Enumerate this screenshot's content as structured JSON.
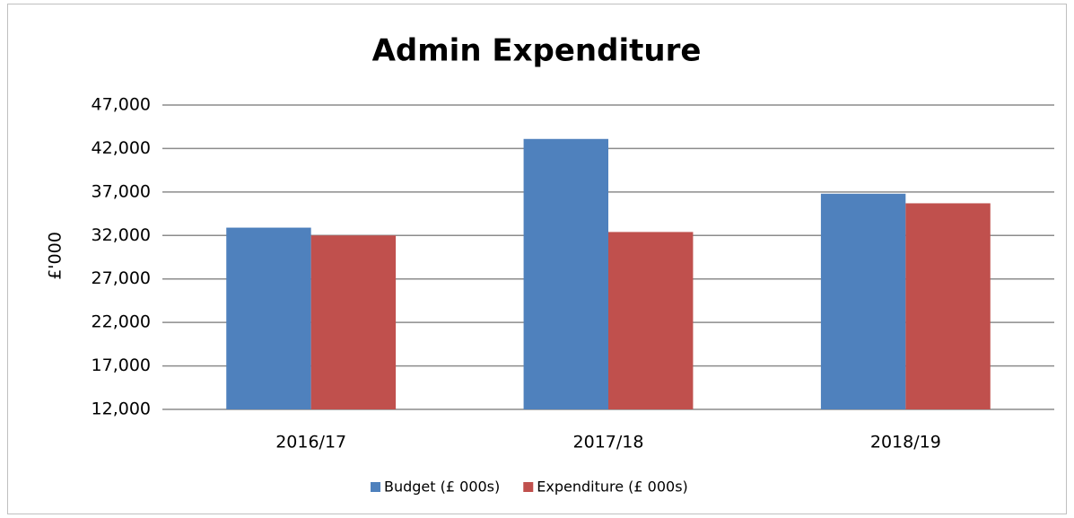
{
  "chart_data": {
    "type": "bar",
    "title": "Admin Expenditure",
    "y_label": "£'000",
    "categories": [
      "2016/17",
      "2017/18",
      "2018/19"
    ],
    "series": [
      {
        "name": "Budget (£ 000s)",
        "color": "#4f81bd",
        "values": [
          32900,
          43100,
          36800
        ]
      },
      {
        "name": "Expenditure (£ 000s)",
        "color": "#c0504d",
        "values": [
          32000,
          32400,
          35700
        ]
      }
    ],
    "ylim": [
      12000,
      47000
    ],
    "yticks": [
      {
        "value": 12000,
        "label": "12,000"
      },
      {
        "value": 17000,
        "label": "17,000"
      },
      {
        "value": 22000,
        "label": "22,000"
      },
      {
        "value": 27000,
        "label": "27,000"
      },
      {
        "value": 32000,
        "label": "32,000"
      },
      {
        "value": 37000,
        "label": "37,000"
      },
      {
        "value": 42000,
        "label": "42,000"
      },
      {
        "value": 47000,
        "label": "47,000"
      }
    ],
    "grid": true,
    "legend": "bottom"
  }
}
